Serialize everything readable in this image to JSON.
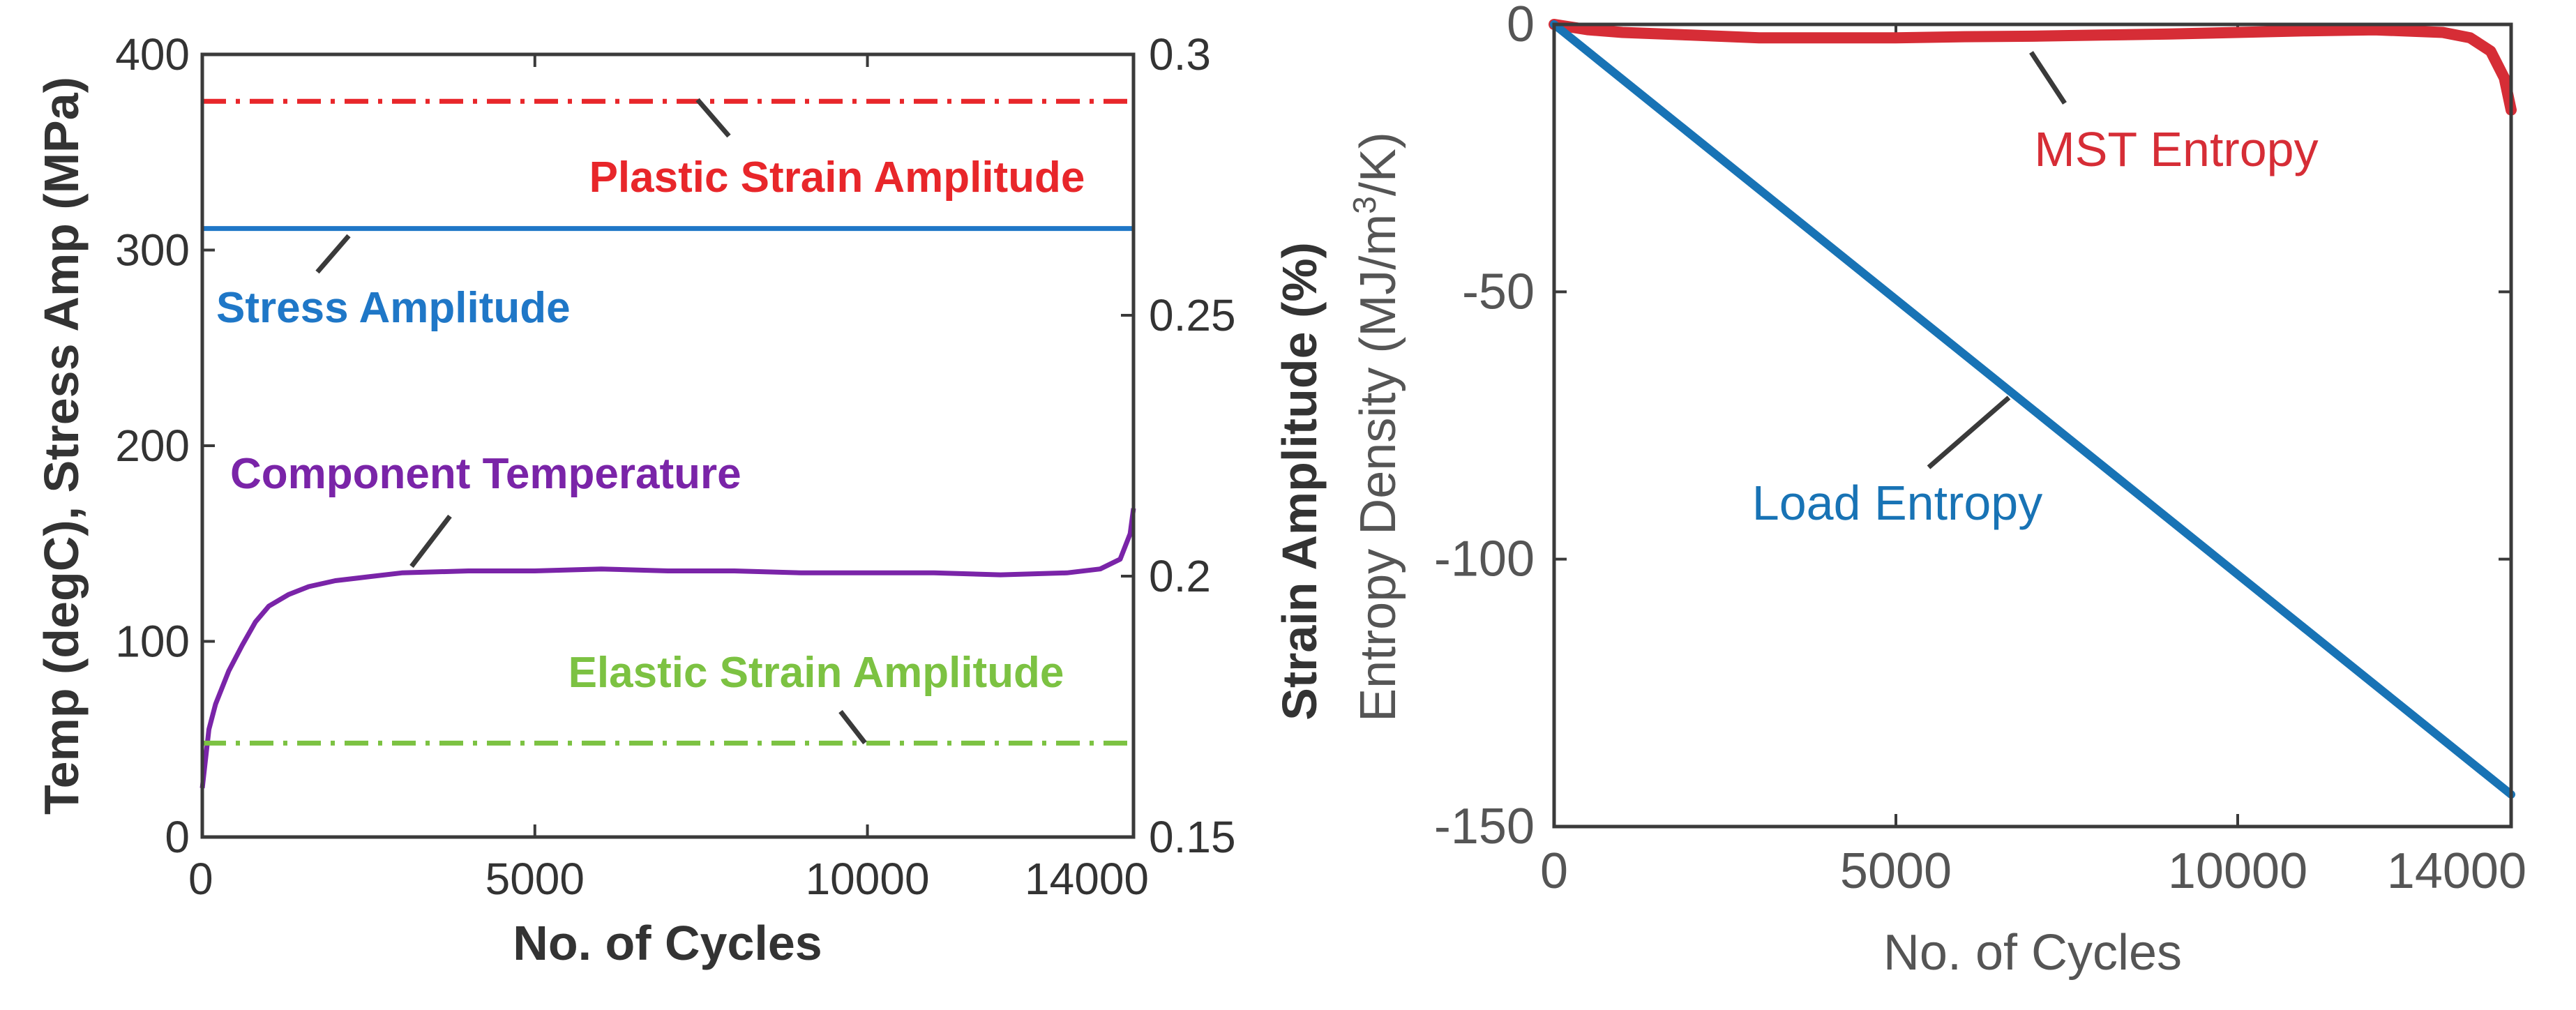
{
  "colors": {
    "red": "#e8262a",
    "blue": "#1f77c7",
    "purple": "#7a24a8",
    "green": "#7cc242",
    "mst_red": "#d62d36",
    "load_blue": "#1873b5",
    "axis": "#3a3a3a"
  },
  "chart_data": [
    {
      "type": "line",
      "title": "",
      "xlabel": "No. of Cycles",
      "ylabel_left": "Temp (degC), Stress Amp (MPa)",
      "ylabel_right": "Strain Amplitude (%)",
      "xlim": [
        0,
        14000
      ],
      "ylim_left": [
        0,
        400
      ],
      "ylim_right": [
        0.15,
        0.3
      ],
      "x_ticks": [
        "0",
        "5000",
        "10000",
        "14000"
      ],
      "y_ticks_left": [
        "0",
        "100",
        "200",
        "300",
        "400"
      ],
      "y_ticks_right": [
        "0.15",
        "0.2",
        "0.25",
        "0.3"
      ],
      "series": [
        {
          "name": "Plastic Strain Amplitude",
          "axis": "right",
          "style": "dash-dot",
          "color": "#e8262a",
          "x": [
            0,
            14000
          ],
          "y": [
            0.291,
            0.291
          ]
        },
        {
          "name": "Stress Amplitude",
          "axis": "left",
          "style": "solid",
          "color": "#1f77c7",
          "x": [
            0,
            14000
          ],
          "y": [
            311,
            311
          ]
        },
        {
          "name": "Component Temperature",
          "axis": "left",
          "style": "solid",
          "color": "#7a24a8",
          "x": [
            0,
            100,
            200,
            400,
            600,
            800,
            1000,
            1300,
            1600,
            2000,
            2500,
            3000,
            4000,
            5000,
            6000,
            7000,
            8000,
            9000,
            10000,
            11000,
            12000,
            13000,
            13500,
            13800,
            13950,
            14000
          ],
          "y": [
            25,
            55,
            68,
            85,
            98,
            110,
            118,
            124,
            128,
            131,
            133,
            135,
            136,
            136,
            137,
            136,
            136,
            135,
            135,
            135,
            134,
            135,
            137,
            142,
            155,
            168
          ]
        },
        {
          "name": "Elastic Strain Amplitude",
          "axis": "right",
          "style": "dash-dot",
          "color": "#7cc242",
          "x": [
            0,
            14000
          ],
          "y": [
            0.168,
            0.168
          ]
        }
      ]
    },
    {
      "type": "line",
      "title": "",
      "xlabel": "No. of Cycles",
      "ylabel": "Entropy Density (MJ/m³/K)",
      "ylabel_parts": [
        "Entropy Density (MJ/m",
        "3",
        "/K)"
      ],
      "xlim": [
        0,
        14000
      ],
      "ylim": [
        -150,
        0
      ],
      "x_ticks": [
        "0",
        "5000",
        "10000",
        "14000"
      ],
      "y_ticks": [
        "0",
        "-50",
        "-100",
        "-150"
      ],
      "series": [
        {
          "name": "MST Entropy",
          "color": "#d62d36",
          "x": [
            0,
            500,
            1000,
            2000,
            3000,
            4000,
            5000,
            6000,
            7000,
            8000,
            9000,
            10000,
            11000,
            12000,
            13000,
            13400,
            13700,
            13900,
            14000
          ],
          "y": [
            0,
            -1,
            -1.5,
            -2,
            -2.5,
            -2.5,
            -2.5,
            -2.3,
            -2.2,
            -2.0,
            -1.8,
            -1.5,
            -1.2,
            -1,
            -1.5,
            -2.5,
            -5,
            -10,
            -16
          ]
        },
        {
          "name": "Load Entropy",
          "color": "#1873b5",
          "x": [
            0,
            14000
          ],
          "y": [
            0,
            -144
          ]
        }
      ]
    }
  ]
}
